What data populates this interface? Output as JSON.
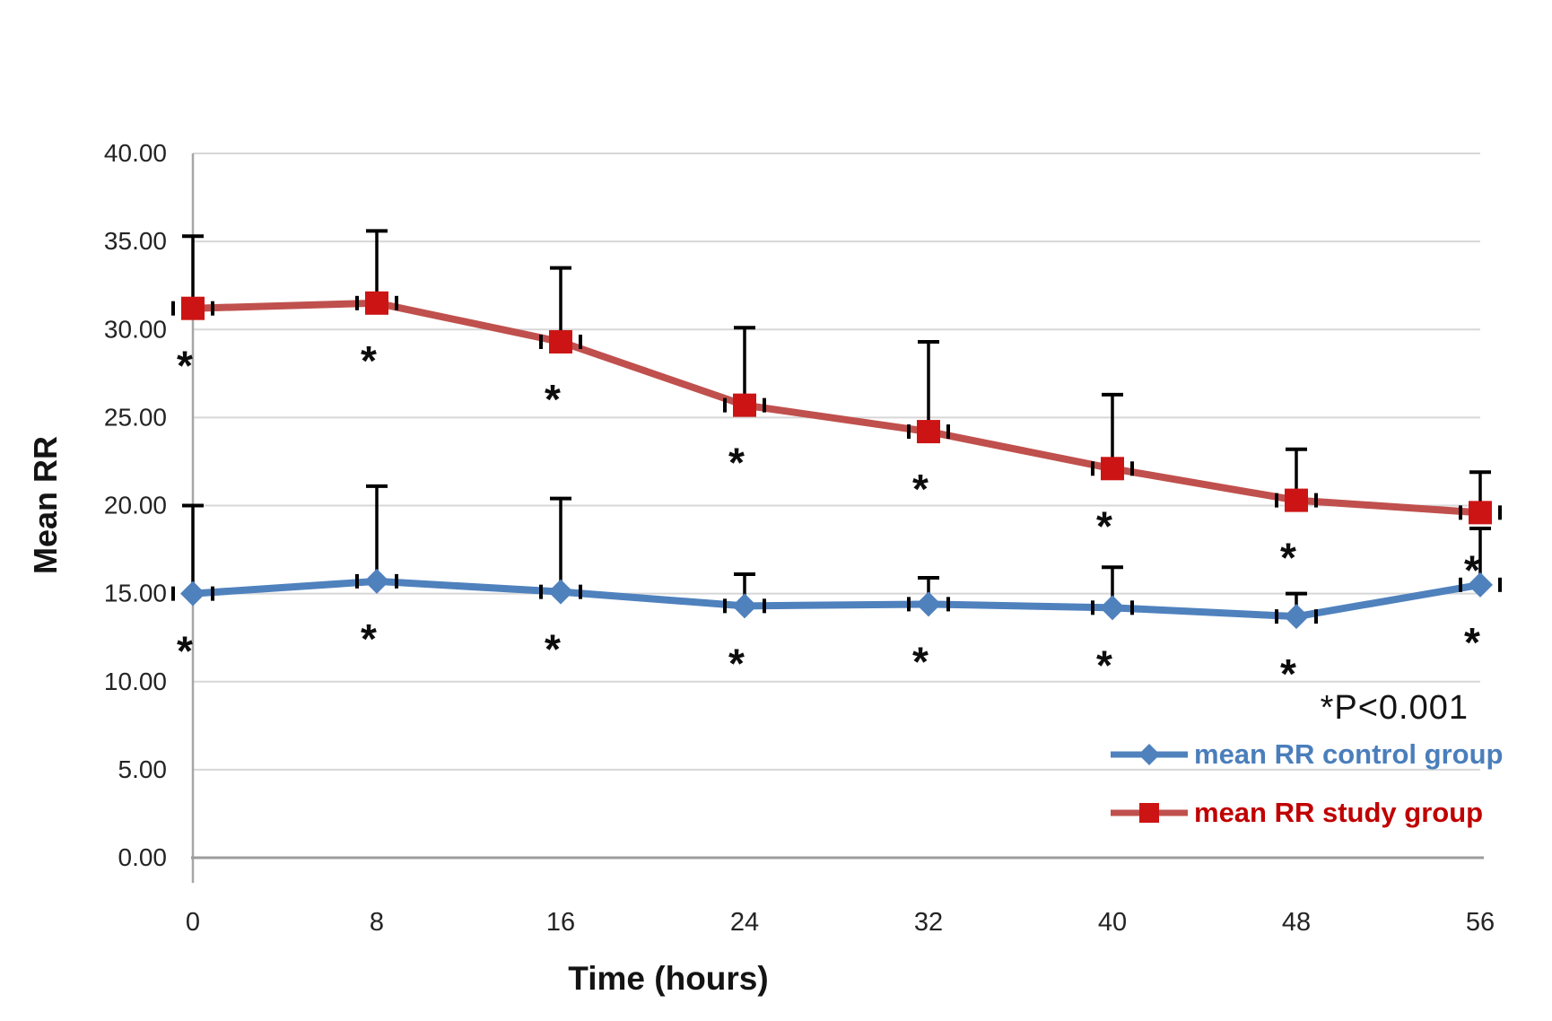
{
  "figure": {
    "y_axis_title": "Mean RR",
    "x_axis_title": "Time (hours)",
    "p_note": "*P<0.001",
    "significance_symbol": "*"
  },
  "colors": {
    "control_line": "#4f81bd",
    "control_marker": "#4f81bd",
    "control_text": "#4a7ebb",
    "study_line": "#c0504d",
    "study_marker": "#cc1414",
    "study_text": "#c00000",
    "error_bar": "#000000",
    "asterisk": "#0d0d0d",
    "gridline": "#d7d7d7",
    "y_axis_line": "#a6a6a6",
    "x_axis_line": "#9c9c9c",
    "tick_text": "#242424"
  },
  "chart_data": {
    "type": "line",
    "title": "",
    "xlabel": "Time (hours)",
    "ylabel": "Mean RR",
    "x": [
      0,
      8,
      16,
      24,
      32,
      40,
      48,
      56
    ],
    "x_tick_labels": [
      "0",
      "8",
      "16",
      "24",
      "32",
      "40",
      "48",
      "56"
    ],
    "ylim": [
      0,
      40
    ],
    "y_tick_step": 5,
    "y_tick_labels": [
      "0.00",
      "5.00",
      "10.00",
      "15.00",
      "20.00",
      "25.00",
      "30.00",
      "35.00",
      "40.00"
    ],
    "grid": "horizontal",
    "legend_position": "inside-bottom-right",
    "annotation": "*P<0.001",
    "significance_note": "every point marked with * is significant at P<0.001",
    "series": [
      {
        "name": "mean RR control group",
        "marker": "diamond",
        "color_key": "control",
        "values": [
          15.0,
          15.7,
          15.1,
          14.3,
          14.4,
          14.2,
          13.7,
          15.5
        ],
        "error_up": [
          5.0,
          5.4,
          5.3,
          1.8,
          1.5,
          2.3,
          1.3,
          3.2
        ],
        "significant": [
          true,
          true,
          true,
          true,
          true,
          true,
          true,
          true
        ]
      },
      {
        "name": "mean RR study group",
        "marker": "square",
        "color_key": "study",
        "values": [
          31.2,
          31.5,
          29.3,
          25.7,
          24.2,
          22.1,
          20.3,
          19.6
        ],
        "error_up": [
          4.1,
          4.1,
          4.2,
          4.4,
          5.1,
          4.2,
          2.9,
          2.3
        ],
        "significant": [
          true,
          true,
          true,
          true,
          true,
          true,
          true,
          true
        ]
      }
    ]
  }
}
